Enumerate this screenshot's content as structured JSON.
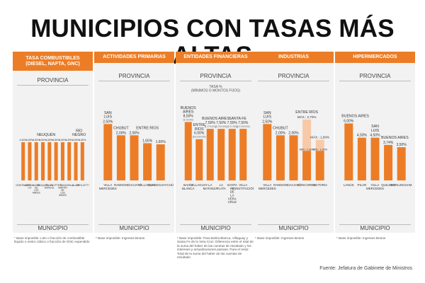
{
  "title": "MUNICIPIOS CON TASAS MÁS ALTAS",
  "source": "Fuente: Jefatura de Gabinete de Ministros",
  "colors": {
    "bar": "#ec7d26",
    "bar_light": "#f8c9a6",
    "header": "#ec7d26",
    "panel_bg": "#f2f2f2"
  },
  "chart_data": [
    {
      "type": "bar",
      "header": "TASA COMBUSTIBLES\n(DIESEL, NAFTA, GNC)",
      "axis_top": "PROVINCIA",
      "axis_bottom": "MUNICIPIO",
      "note": "* Base imponible: Litro o fracción de combustible líquido o metro cúbico o fracción de GNC expendido",
      "groups": [
        {
          "label": "NEUQUÉN",
          "from": 0,
          "to": 7
        },
        {
          "label": "RÍO\nNEGRO",
          "from": 8,
          "to": 9
        }
      ],
      "categories": [
        "CENTENARIO",
        "CUTRAL CO",
        "JUNÍN DE LOS ANDES",
        "NEUQUÉN",
        "PLAZA HUINCUL",
        "PLOTTIER",
        "SAN MARTÍN DE LOS ANDES",
        "ZAPALA",
        "ALLEN",
        "CIPOLLETTI"
      ],
      "values": [
        4.5,
        4.5,
        4.5,
        4.5,
        4.5,
        4.5,
        4.5,
        4.5,
        4.5,
        4.5
      ],
      "value_labels": [
        "4,50%",
        "4,50%",
        "4,50%",
        "4,50%",
        "4,50%",
        "4,50%",
        "4,50%",
        "4,50%",
        "4,50%",
        "4,50%"
      ],
      "ylim": [
        0,
        8.5
      ]
    },
    {
      "type": "bar",
      "header": "ACTIVIDADES PRIMARIAS",
      "axis_top": "PROVINCIA",
      "axis_bottom": "MUNICIPIO",
      "note": "* Base imponible: Ingresos Brutos",
      "groups": [
        {
          "label": "SAN\nLUIS",
          "from": 0,
          "to": 0
        },
        {
          "label": "CHUBUT",
          "from": 1,
          "to": 1
        },
        {
          "label": "ENTRE RÍOS",
          "from": 2,
          "to": 4
        }
      ],
      "categories": [
        "VILLA MERCEDES",
        "RAWSON",
        "CHAJARÍ",
        "VILLAGUAY",
        "GUALEGUAYCHÚ"
      ],
      "values": [
        2.5,
        2.0,
        2.0,
        1.65,
        1.6
      ],
      "value_labels": [
        "2,50%",
        "2,00%",
        "2,00%",
        "1,65%",
        "1,60%"
      ],
      "ylim": [
        0,
        3.2
      ]
    },
    {
      "type": "bar",
      "header": "ENTIDADES FINANCIERAS",
      "axis_top": "PROVINCIA",
      "axis_sub": "TASA %\n(MÍNIMOS O MONTOS FIJOS)",
      "axis_bottom": "MUNICIPIO",
      "note": "* Base imponible: Para Bahía Blanca, Villaguay y Santa Fe de la Vera Cruz: Diferencia entre el total de la suma del haber de las cuentas de resultado y los intereses y actualizaciones pasivas. Para el resto: Total de la suma del haber de las cuentas de resultado",
      "groups": [
        {
          "label": "BUENOS\nAIRES",
          "from": 0,
          "to": 0
        },
        {
          "label": "ENTRE\nRÍOS",
          "from": 1,
          "to": 1
        },
        {
          "label": "BUENOS AIRES",
          "from": 2,
          "to": 3
        },
        {
          "label": "SANTA FE",
          "from": 4,
          "to": 5
        }
      ],
      "categories": [
        "BAHÍA BLANCA",
        "VILLAGUAY",
        "LA MATANZA",
        "LA PLATA",
        "SANTA FE DE LA VERA CRUZ",
        "VILLA CONSTITUCIÓN"
      ],
      "values": [
        8.5,
        6.0,
        7.5,
        7.5,
        7.5,
        7.5
      ],
      "value_labels": [
        "8,50%",
        "6,00%",
        "7,50%",
        "7,50%",
        "7,50%",
        "7,50%"
      ],
      "sub_labels": [
        "($ 15.000)",
        "($ 8.000.000)",
        "($ 179.420)",
        "($ 219.600)",
        "($ 47.000)",
        "($ 2.000.000)"
      ],
      "ylim": [
        0,
        10.5
      ]
    },
    {
      "type": "bar",
      "header": "INDUSTRIAS",
      "axis_top": "PROVINCIA",
      "axis_bottom": "MUNICIPIO",
      "note": "* Base imponible: Ingresos Brutos",
      "groups": [
        {
          "label": "SAN\nLUIS",
          "from": 0,
          "to": 0
        },
        {
          "label": "CHUBUT",
          "from": 1,
          "to": 1
        },
        {
          "label": "ENTRE RÍOS",
          "from": 2,
          "to": 4
        }
      ],
      "categories": [
        "VILLA MERCEDES",
        "RAWSON",
        "CHAJARÍ",
        "CONCORDIA",
        "VICTORIA"
      ],
      "values": [
        2.5,
        2.0,
        2.0,
        2.7,
        1.8
      ],
      "min_values": [
        null,
        null,
        null,
        1.3,
        1.3
      ],
      "value_labels": [
        "2,50%",
        "2,00%",
        "2,00%",
        "MÁX.: 2,70%",
        "MÁX.: 1,80%"
      ],
      "min_labels": [
        "",
        "",
        "",
        "MÍN.: 1,30%",
        "MÍN.: 1,30%"
      ],
      "ylim": [
        0,
        3.2
      ]
    },
    {
      "type": "bar",
      "header": "HIPERMERCADOS",
      "axis_top": "PROVINCIA",
      "axis_bottom": "MUNICIPIO",
      "note": "* Base imponible: Ingresos Brutos",
      "groups": [
        {
          "label": "BUENOS AIRES",
          "from": 0,
          "to": 1
        },
        {
          "label": "SAN\nLUIS",
          "from": 2,
          "to": 2
        },
        {
          "label": "BUENOS AIRES",
          "from": 3,
          "to": 4
        }
      ],
      "categories": [
        "LANÚS",
        "PILAR",
        "VILLA MERCEDES",
        "QUILMES",
        "HURLINGHAM"
      ],
      "values": [
        6.0,
        4.5,
        4.5,
        3.74,
        3.5
      ],
      "value_labels": [
        "6,00%",
        "4,50%",
        "4,50%",
        "3,74%",
        "3,50%"
      ],
      "ylim": [
        0,
        7.6
      ]
    }
  ]
}
